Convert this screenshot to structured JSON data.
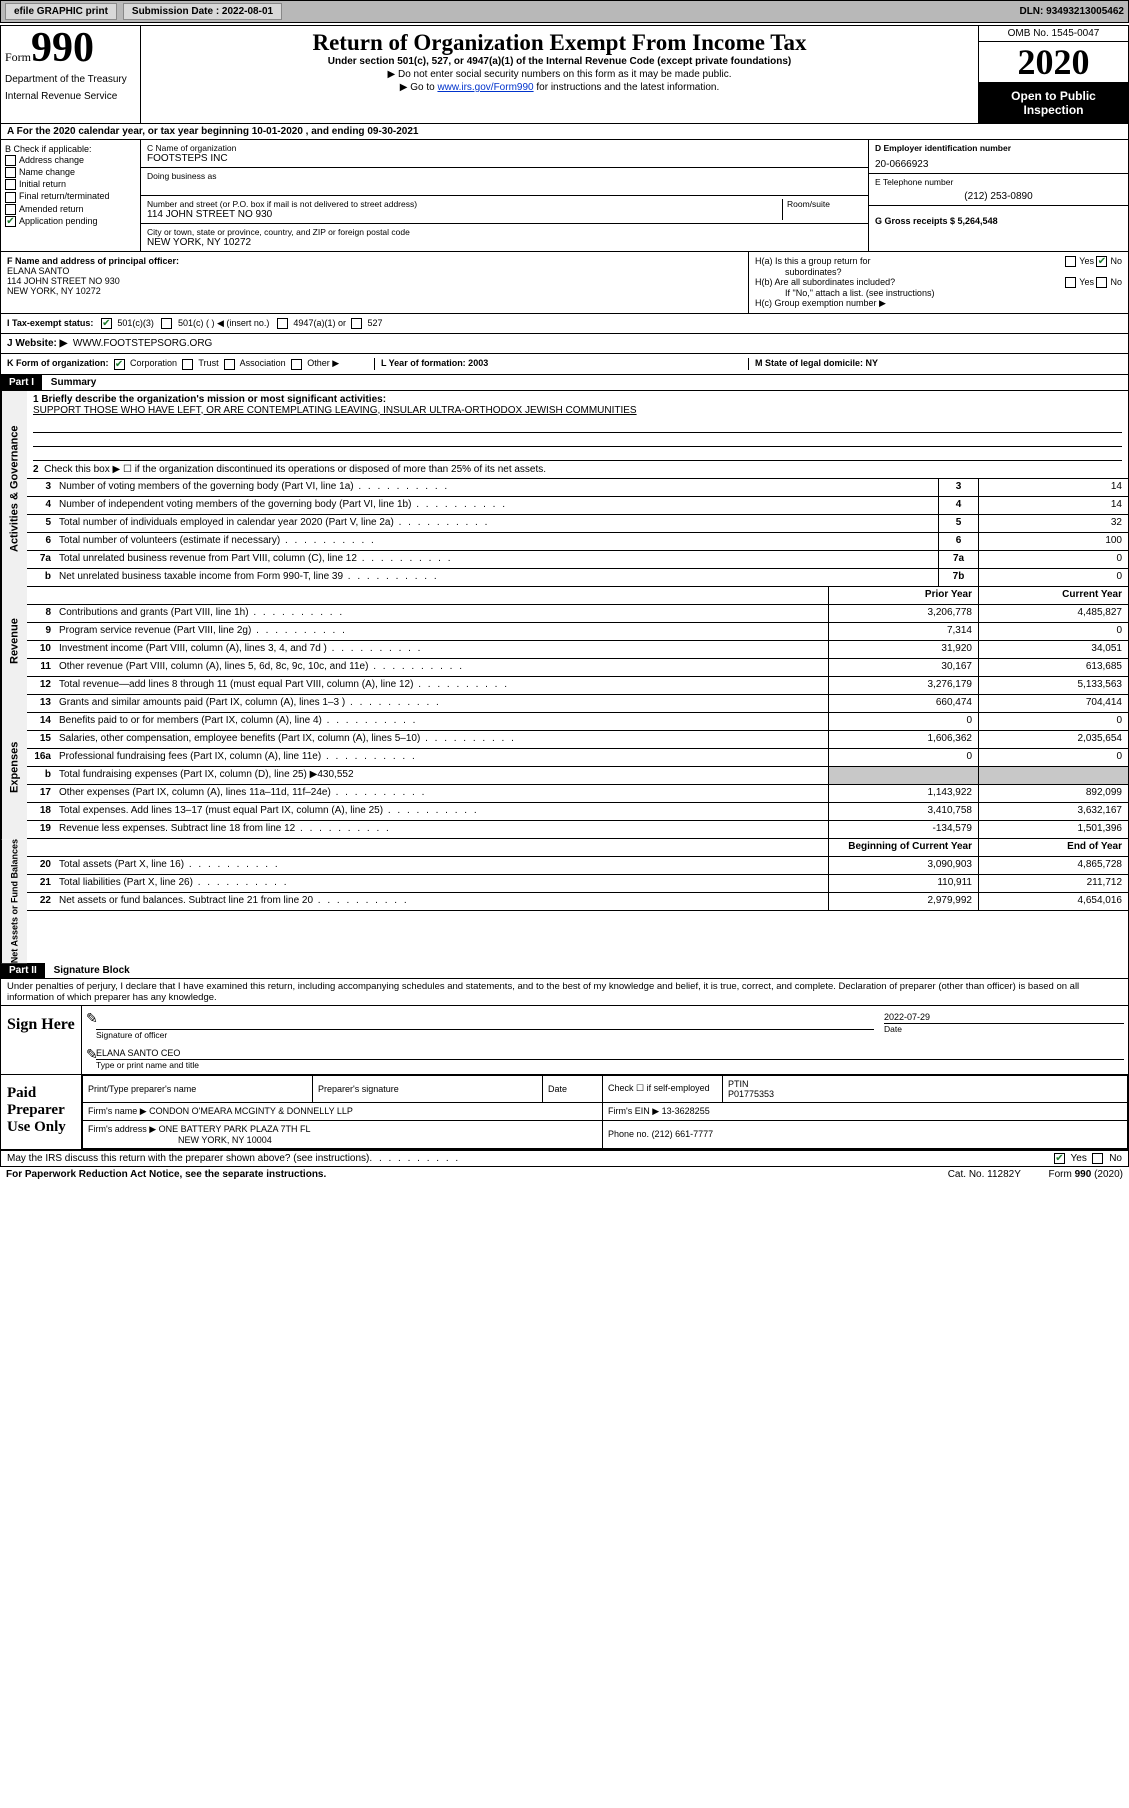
{
  "topbar": {
    "efile_label": "efile GRAPHIC print",
    "submission_label": "Submission Date : 2022-08-01",
    "dln": "DLN: 93493213005462"
  },
  "header": {
    "form_word": "Form",
    "form_number": "990",
    "dept": "Department of the Treasury",
    "irs": "Internal Revenue Service",
    "title": "Return of Organization Exempt From Income Tax",
    "subtitle": "Under section 501(c), 527, or 4947(a)(1) of the Internal Revenue Code (except private foundations)",
    "note1": "▶ Do not enter social security numbers on this form as it may be made public.",
    "note2_pre": "▶ Go to ",
    "note2_link": "www.irs.gov/Form990",
    "note2_post": " for instructions and the latest information.",
    "omb": "OMB No. 1545-0047",
    "year": "2020",
    "open": "Open to Public Inspection"
  },
  "rowA": "A For the 2020 calendar year, or tax year beginning 10-01-2020    , and ending 09-30-2021",
  "colB": {
    "label": "B Check if applicable:",
    "addr": "Address change",
    "name": "Name change",
    "initial": "Initial return",
    "final": "Final return/terminated",
    "amended": "Amended return",
    "app": "Application pending"
  },
  "colC": {
    "name_label": "C Name of organization",
    "name": "FOOTSTEPS INC",
    "dba_label": "Doing business as",
    "street_label": "Number and street (or P.O. box if mail is not delivered to street address)",
    "room_label": "Room/suite",
    "street": "114 JOHN STREET NO 930",
    "city_label": "City or town, state or province, country, and ZIP or foreign postal code",
    "city": "NEW YORK, NY  10272"
  },
  "colD": {
    "ein_label": "D Employer identification number",
    "ein": "20-0666923",
    "tel_label": "E Telephone number",
    "tel": "(212) 253-0890",
    "gross_label": "G Gross receipts $ 5,264,548"
  },
  "rowF": {
    "label": "F  Name and address of principal officer:",
    "name": "ELANA SANTO",
    "addr1": "114 JOHN STREET NO 930",
    "addr2": "NEW YORK, NY  10272"
  },
  "rowH": {
    "a": "H(a)  Is this a group return for",
    "a2": "subordinates?",
    "b": "H(b)  Are all subordinates included?",
    "bnote": "If \"No,\" attach a list. (see instructions)",
    "c": "H(c)  Group exemption number ▶",
    "yes": "Yes",
    "no": "No"
  },
  "rowI": {
    "label": "I    Tax-exempt status:",
    "c501c3": "501(c)(3)",
    "c501c": "501(c) (  ) ◀ (insert no.)",
    "c4947": "4947(a)(1) or",
    "c527": "527"
  },
  "rowJ": {
    "label": "J   Website: ▶",
    "val": "WWW.FOOTSTEPSORG.ORG"
  },
  "rowK": {
    "label": "K Form of organization:",
    "corp": "Corporation",
    "trust": "Trust",
    "assoc": "Association",
    "other": "Other ▶",
    "L": "L Year of formation: 2003",
    "M": "M State of legal domicile: NY"
  },
  "part1": {
    "hdr": "Part I",
    "title": "Summary",
    "l1_label": "1  Briefly describe the organization's mission or most significant activities:",
    "l1_val": "SUPPORT THOSE WHO HAVE LEFT, OR ARE CONTEMPLATING LEAVING, INSULAR ULTRA-ORTHODOX JEWISH COMMUNITIES",
    "l2": "Check this box ▶ ☐  if the organization discontinued its operations or disposed of more than 25% of its net assets.",
    "vlabels": {
      "gov": "Activities & Governance",
      "rev": "Revenue",
      "exp": "Expenses",
      "net": "Net Assets or Fund Balances"
    },
    "lines_gov": [
      {
        "n": "3",
        "d": "Number of voting members of the governing body (Part VI, line 1a)",
        "box": "3",
        "v": "14"
      },
      {
        "n": "4",
        "d": "Number of independent voting members of the governing body (Part VI, line 1b)",
        "box": "4",
        "v": "14"
      },
      {
        "n": "5",
        "d": "Total number of individuals employed in calendar year 2020 (Part V, line 2a)",
        "box": "5",
        "v": "32"
      },
      {
        "n": "6",
        "d": "Total number of volunteers (estimate if necessary)",
        "box": "6",
        "v": "100"
      },
      {
        "n": "7a",
        "d": "Total unrelated business revenue from Part VIII, column (C), line 12",
        "box": "7a",
        "v": "0"
      },
      {
        "n": "b",
        "d": "Net unrelated business taxable income from Form 990-T, line 39",
        "box": "7b",
        "v": "0"
      }
    ],
    "col_hdrs": {
      "prior": "Prior Year",
      "current": "Current Year"
    },
    "lines_rev": [
      {
        "n": "8",
        "d": "Contributions and grants (Part VIII, line 1h)",
        "p": "3,206,778",
        "c": "4,485,827"
      },
      {
        "n": "9",
        "d": "Program service revenue (Part VIII, line 2g)",
        "p": "7,314",
        "c": "0"
      },
      {
        "n": "10",
        "d": "Investment income (Part VIII, column (A), lines 3, 4, and 7d )",
        "p": "31,920",
        "c": "34,051"
      },
      {
        "n": "11",
        "d": "Other revenue (Part VIII, column (A), lines 5, 6d, 8c, 9c, 10c, and 11e)",
        "p": "30,167",
        "c": "613,685"
      },
      {
        "n": "12",
        "d": "Total revenue—add lines 8 through 11 (must equal Part VIII, column (A), line 12)",
        "p": "3,276,179",
        "c": "5,133,563"
      }
    ],
    "lines_exp": [
      {
        "n": "13",
        "d": "Grants and similar amounts paid (Part IX, column (A), lines 1–3 )",
        "p": "660,474",
        "c": "704,414"
      },
      {
        "n": "14",
        "d": "Benefits paid to or for members (Part IX, column (A), line 4)",
        "p": "0",
        "c": "0"
      },
      {
        "n": "15",
        "d": "Salaries, other compensation, employee benefits (Part IX, column (A), lines 5–10)",
        "p": "1,606,362",
        "c": "2,035,654"
      },
      {
        "n": "16a",
        "d": "Professional fundraising fees (Part IX, column (A), line 11e)",
        "p": "0",
        "c": "0"
      },
      {
        "n": "b",
        "d": "Total fundraising expenses (Part IX, column (D), line 25) ▶430,552",
        "p": "",
        "c": "",
        "shaded": true
      },
      {
        "n": "17",
        "d": "Other expenses (Part IX, column (A), lines 11a–11d, 11f–24e)",
        "p": "1,143,922",
        "c": "892,099"
      },
      {
        "n": "18",
        "d": "Total expenses. Add lines 13–17 (must equal Part IX, column (A), line 25)",
        "p": "3,410,758",
        "c": "3,632,167"
      },
      {
        "n": "19",
        "d": "Revenue less expenses. Subtract line 18 from line 12",
        "p": "-134,579",
        "c": "1,501,396"
      }
    ],
    "col_hdrs2": {
      "prior": "Beginning of Current Year",
      "current": "End of Year"
    },
    "lines_net": [
      {
        "n": "20",
        "d": "Total assets (Part X, line 16)",
        "p": "3,090,903",
        "c": "4,865,728"
      },
      {
        "n": "21",
        "d": "Total liabilities (Part X, line 26)",
        "p": "110,911",
        "c": "211,712"
      },
      {
        "n": "22",
        "d": "Net assets or fund balances. Subtract line 21 from line 20",
        "p": "2,979,992",
        "c": "4,654,016"
      }
    ]
  },
  "part2": {
    "hdr": "Part II",
    "title": "Signature Block",
    "perjury": "Under penalties of perjury, I declare that I have examined this return, including accompanying schedules and statements, and to the best of my knowledge and belief, it is true, correct, and complete. Declaration of preparer (other than officer) is based on all information of which preparer has any knowledge.",
    "sign_here": "Sign Here",
    "sig_officer": "Signature of officer",
    "date_label": "Date",
    "sig_date": "2022-07-29",
    "officer_name": "ELANA SANTO  CEO",
    "type_name": "Type or print name and title",
    "paid_prep": "Paid Preparer Use Only",
    "prep_name_label": "Print/Type preparer's name",
    "prep_sig_label": "Preparer's signature",
    "prep_date_label": "Date",
    "prep_check": "Check ☐ if self-employed",
    "ptin_label": "PTIN",
    "ptin": "P01775353",
    "firm_name_label": "Firm's name    ▶",
    "firm_name": "CONDON O'MEARA MCGINTY & DONNELLY LLP",
    "firm_ein_label": "Firm's EIN ▶",
    "firm_ein": "13-3628255",
    "firm_addr_label": "Firm's address ▶",
    "firm_addr1": "ONE BATTERY PARK PLAZA 7TH FL",
    "firm_addr2": "NEW YORK, NY  10004",
    "firm_phone_label": "Phone no.",
    "firm_phone": "(212) 661-7777",
    "discuss": "May the IRS discuss this return with the preparer shown above? (see instructions)",
    "discuss_yes": "Yes",
    "discuss_no": "No"
  },
  "footer": {
    "paperwork": "For Paperwork Reduction Act Notice, see the separate instructions.",
    "catno": "Cat. No. 11282Y",
    "formno": "Form 990 (2020)"
  }
}
